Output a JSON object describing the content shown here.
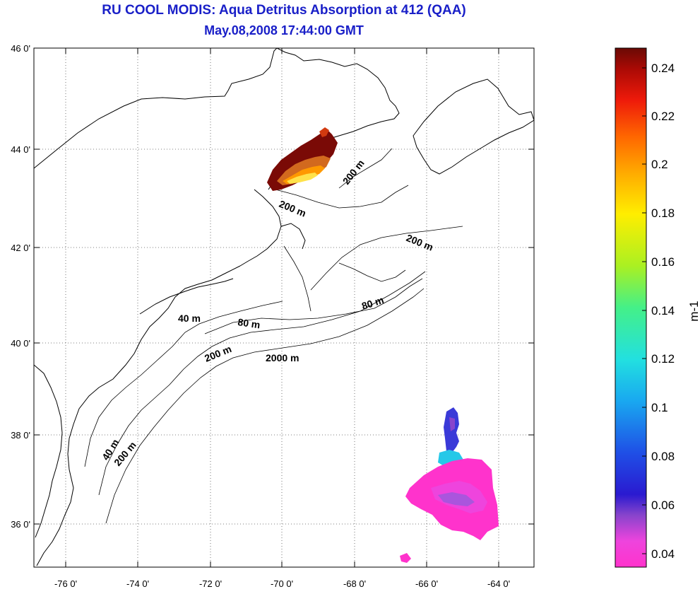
{
  "title": {
    "line1": "RU COOL MODIS: Aqua Detritus Absorption at 412 (QAA)",
    "line2": "May.08,2008 17:44:00 GMT"
  },
  "map": {
    "lon_range": [
      -77,
      -63
    ],
    "lat_range": [
      35,
      46
    ],
    "x_ticks": [
      "-76 0'",
      "-74 0'",
      "-72 0'",
      "-70 0'",
      "-68 0'",
      "-66 0'",
      "-64 0'"
    ],
    "y_ticks": [
      "46 0'",
      "44 0'",
      "42 0'",
      "40 0'",
      "38 0'",
      "36 0'"
    ],
    "grid": "dotted",
    "contour_labels": [
      "200 m",
      "200 m",
      "200 m",
      "40 m",
      "80 m",
      "80 m",
      "200 m",
      "2000 m",
      "40 m",
      "200 m"
    ]
  },
  "colorbar": {
    "unit_label": "m-1",
    "ticks": [
      "0.24",
      "0.22",
      "0.2",
      "0.18",
      "0.16",
      "0.14",
      "0.12",
      "0.1",
      "0.08",
      "0.06",
      "0.04"
    ],
    "range": [
      0.033,
      0.248
    ],
    "colors": [
      "#ff33cc",
      "#ee44dd",
      "#8844cc",
      "#2a1ad0",
      "#1f4fe6",
      "#19a8f0",
      "#22e0e0",
      "#44f088",
      "#aaf022",
      "#ffee00",
      "#ffaa00",
      "#ff6600",
      "#ee1a0a",
      "#aa0a05",
      "#6a0a05"
    ]
  }
}
